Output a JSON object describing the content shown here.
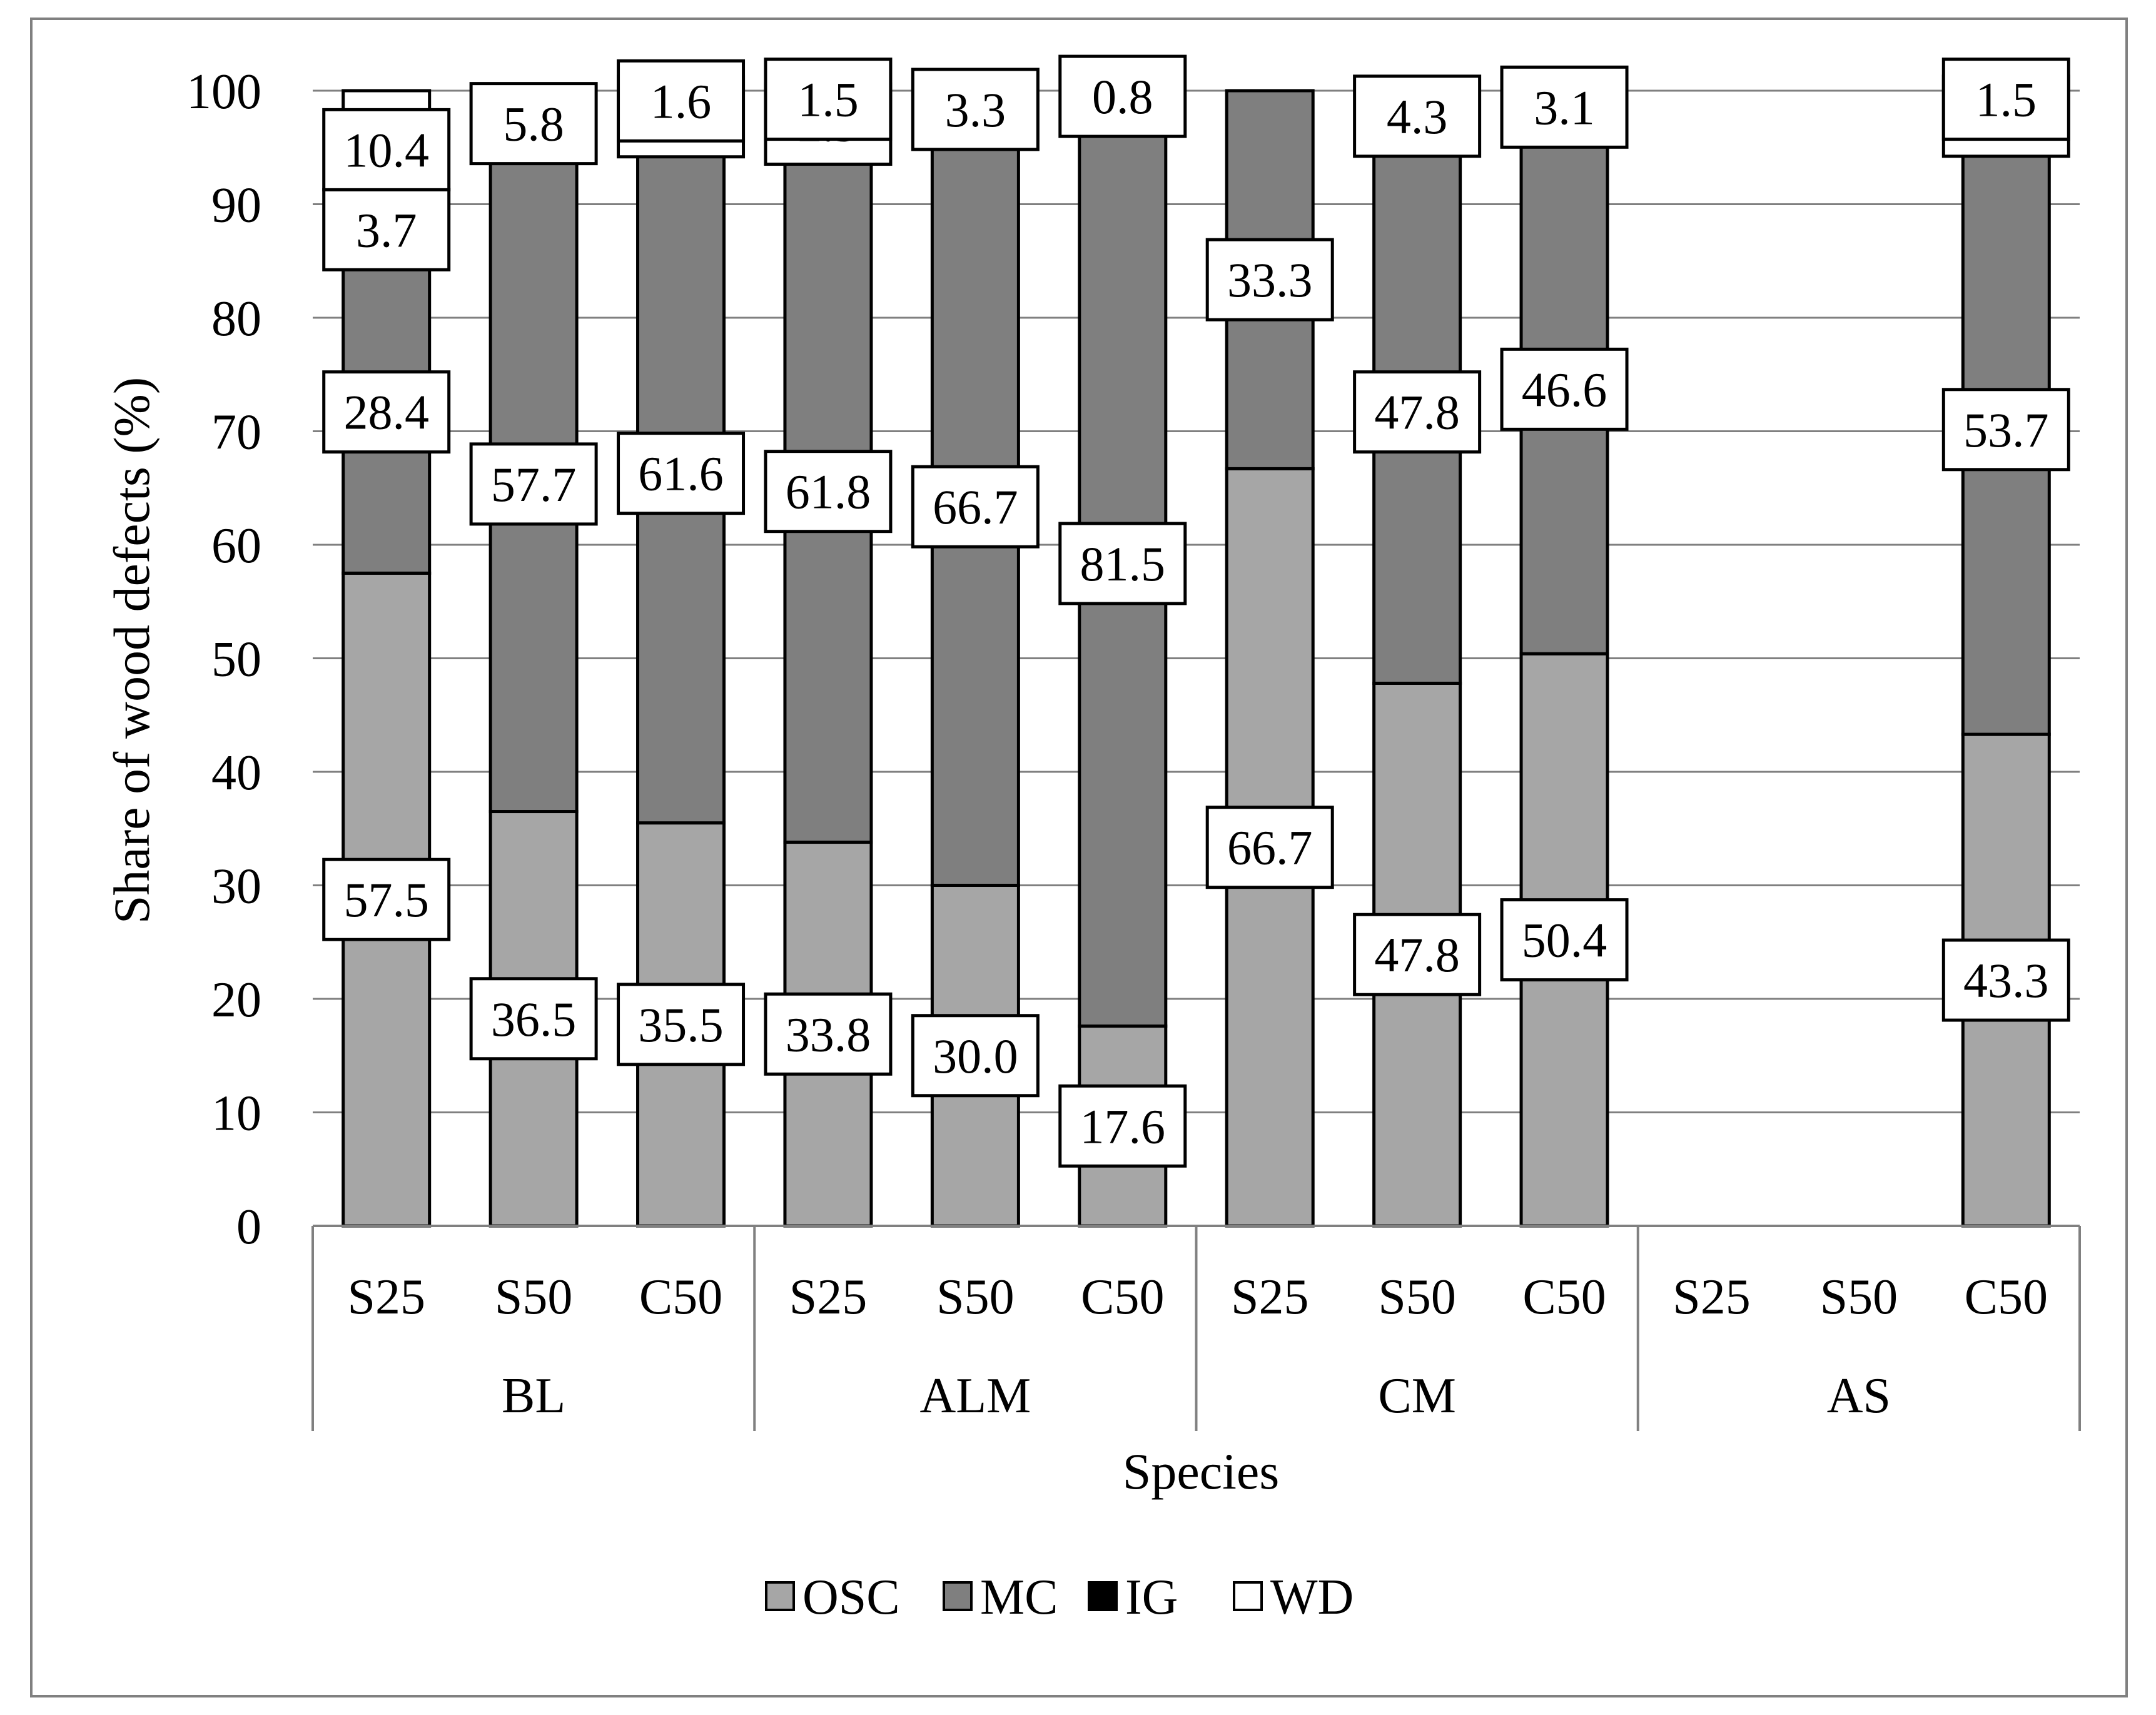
{
  "chart_data": {
    "type": "bar",
    "stacked": true,
    "xlabel": "Species",
    "ylabel": "Share of wood defects (%)",
    "ylim": [
      0,
      100
    ],
    "yticks": [
      0,
      10,
      20,
      30,
      40,
      50,
      60,
      70,
      80,
      90,
      100
    ],
    "grid": true,
    "legend_position": "bottom",
    "groups": [
      "BL",
      "ALM",
      "CM",
      "AS"
    ],
    "subcategories": [
      "S25",
      "S50",
      "C50"
    ],
    "categories": [
      "BL S25",
      "BL S50",
      "BL C50",
      "ALM S25",
      "ALM S50",
      "ALM C50",
      "CM S25",
      "CM S50",
      "CM C50",
      "AS S25",
      "AS S50",
      "AS C50"
    ],
    "series": [
      {
        "name": "OSC",
        "color": "#a6a6a6",
        "values": [
          57.5,
          36.5,
          35.5,
          33.8,
          30.0,
          17.6,
          66.7,
          47.8,
          50.4,
          0,
          0,
          43.3
        ]
      },
      {
        "name": "MC",
        "color": "#7f7f7f",
        "values": [
          28.4,
          57.7,
          61.6,
          61.8,
          66.7,
          81.5,
          33.3,
          47.8,
          46.6,
          0,
          0,
          53.7
        ]
      },
      {
        "name": "IG",
        "color": "#000000",
        "values": [
          3.7,
          0,
          1.2,
          2.9,
          3.3,
          0.8,
          0,
          4.3,
          0,
          0,
          0,
          1.5
        ]
      },
      {
        "name": "WD",
        "color": "#ffffff",
        "values": [
          10.4,
          5.8,
          1.6,
          1.5,
          0,
          0,
          0,
          0,
          3.1,
          0,
          0,
          1.5
        ]
      }
    ],
    "data_labels": [
      [
        "57.5",
        "28.4",
        "3.7",
        "10.4"
      ],
      [
        "36.5",
        "57.7",
        null,
        "5.8"
      ],
      [
        "35.5",
        "61.6",
        "1.2",
        "1.6"
      ],
      [
        "33.8",
        "61.8",
        "2.9",
        "1.5"
      ],
      [
        "30.0",
        "66.7",
        "3.3",
        null
      ],
      [
        "17.6",
        "81.5",
        "0.8",
        null
      ],
      [
        "66.7",
        "33.3",
        null,
        null
      ],
      [
        "47.8",
        "47.8",
        "4.3",
        null
      ],
      [
        "50.4",
        "46.6",
        null,
        "3.1"
      ],
      [
        null,
        null,
        null,
        null
      ],
      [
        null,
        null,
        null,
        null
      ],
      [
        "43.3",
        "53.7",
        "1.5",
        "1.5"
      ]
    ]
  }
}
